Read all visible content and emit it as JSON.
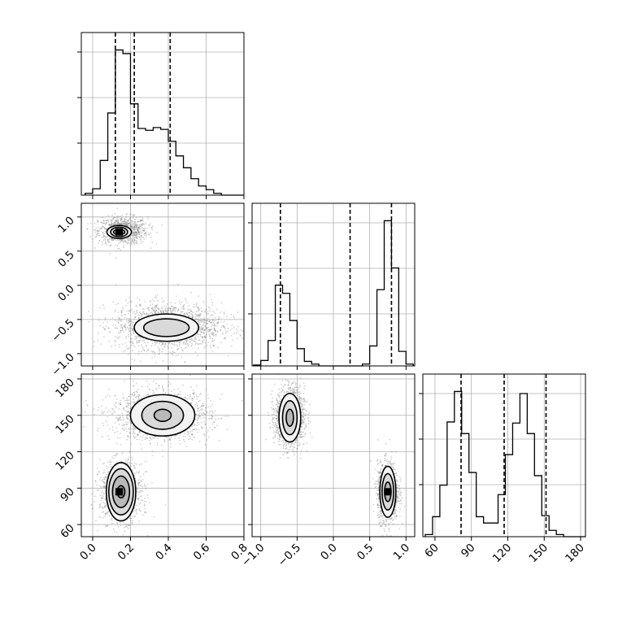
{
  "chart_data": {
    "type": "corner",
    "variables": [
      "param_0",
      "param_1",
      "param_2"
    ],
    "histograms": [
      {
        "variable": 0,
        "bins": [
          -0.04,
          0.0,
          0.04,
          0.08,
          0.12,
          0.16,
          0.2,
          0.24,
          0.28,
          0.32,
          0.36,
          0.4,
          0.44,
          0.48,
          0.52,
          0.56,
          0.6,
          0.64,
          0.68,
          0.72,
          0.76,
          0.8
        ],
        "counts": [
          0.2,
          0.7,
          3.8,
          9.0,
          15.9,
          15.5,
          10.0,
          7.3,
          7.1,
          7.4,
          7.2,
          5.9,
          4.3,
          3.0,
          1.8,
          1.0,
          0.6,
          0.2,
          0,
          0,
          0
        ],
        "quantiles": [
          0.12,
          0.22,
          0.41
        ],
        "xlim": [
          -0.06,
          0.8
        ]
      },
      {
        "variable": 1,
        "bins": [
          -1.1,
          -1.0,
          -0.9,
          -0.8,
          -0.7,
          -0.6,
          -0.5,
          -0.4,
          -0.3,
          -0.2,
          -0.1,
          0.0,
          0.1,
          0.2,
          0.3,
          0.4,
          0.5,
          0.6,
          0.7,
          0.8,
          0.9,
          1.0,
          1.1
        ],
        "counts": [
          0.1,
          0.6,
          2.8,
          8.9,
          8.0,
          5.0,
          1.9,
          0.5,
          0.2,
          0,
          0,
          0,
          0,
          0,
          0,
          0.2,
          2.2,
          8.4,
          16.0,
          10.8,
          1.6,
          0.2
        ],
        "quantiles": [
          -0.73,
          0.23,
          0.8
        ],
        "xlim": [
          -1.12,
          1.12
        ]
      },
      {
        "variable": 2,
        "bins": [
          52,
          58,
          64,
          70,
          76,
          82,
          88,
          94,
          100,
          106,
          112,
          118,
          124,
          130,
          136,
          142,
          148,
          154,
          160,
          166,
          172,
          178,
          184
        ],
        "counts": [
          0.2,
          1.9,
          4.9,
          10.9,
          13.8,
          9.8,
          6.1,
          1.9,
          1.3,
          1.3,
          4.0,
          7.8,
          10.8,
          13.6,
          9.8,
          5.8,
          2.0,
          0.6,
          0.2,
          0,
          0,
          0
        ],
        "quantiles": [
          81.5,
          117.0,
          151.5
        ],
        "xlim": [
          50,
          184
        ]
      }
    ],
    "scatter_panels": [
      {
        "x": 0,
        "y": 1,
        "xlim": [
          -0.06,
          0.8
        ],
        "ylim": [
          -1.18,
          1.2
        ],
        "clusters": [
          {
            "center": [
              0.16,
              0.8
            ],
            "spread": [
              0.065,
              0.1
            ],
            "n": 900
          },
          {
            "center": [
              0.4,
              -0.6
            ],
            "spread": [
              0.14,
              0.17
            ],
            "n": 1800
          }
        ],
        "contours": [
          {
            "center": [
              0.14,
              0.78
            ],
            "radii": [
              [
                0.03,
                0.035
              ],
              [
                0.045,
                0.07
              ],
              [
                0.065,
                0.095
              ]
            ]
          },
          {
            "center": [
              0.39,
              -0.62
            ],
            "radii": [
              [
                0.12,
                0.13
              ],
              [
                0.17,
                0.2
              ]
            ]
          }
        ],
        "peak": [
          0.14,
          0.78
        ]
      },
      {
        "x": 0,
        "y": 2,
        "xlim": [
          -0.06,
          0.8
        ],
        "ylim": [
          50,
          184
        ],
        "clusters": [
          {
            "center": [
              0.15,
              87
            ],
            "spread": [
              0.055,
              12
            ],
            "n": 1200
          },
          {
            "center": [
              0.36,
              150
            ],
            "spread": [
              0.13,
              10
            ],
            "n": 1600
          }
        ],
        "contours": [
          {
            "center": [
              0.15,
              87
            ],
            "radii": [
              [
                0.02,
                5
              ],
              [
                0.045,
                13
              ],
              [
                0.065,
                19
              ],
              [
                0.078,
                24
              ]
            ]
          },
          {
            "center": [
              0.37,
              150
            ],
            "radii": [
              [
                0.045,
                5
              ],
              [
                0.11,
                11.5
              ],
              [
                0.17,
                17
              ]
            ]
          }
        ],
        "peak": [
          0.14,
          87
        ]
      },
      {
        "x": 1,
        "y": 2,
        "xlim": [
          -1.12,
          1.12
        ],
        "ylim": [
          50,
          184
        ],
        "clusters": [
          {
            "center": [
              -0.6,
              148
            ],
            "spread": [
              0.1,
              12
            ],
            "n": 1400
          },
          {
            "center": [
              0.75,
              87
            ],
            "spread": [
              0.07,
              12
            ],
            "n": 1300
          }
        ],
        "contours": [
          {
            "center": [
              -0.6,
              148
            ],
            "radii": [
              [
                0.05,
                7
              ],
              [
                0.1,
                14
              ],
              [
                0.15,
                20
              ]
            ]
          },
          {
            "center": [
              0.75,
              87
            ],
            "radii": [
              [
                0.045,
                8
              ],
              [
                0.08,
                15
              ],
              [
                0.11,
                21
              ]
            ]
          }
        ],
        "peak": [
          0.75,
          87
        ]
      }
    ],
    "ticks": {
      "0": [
        "0.0",
        "0.2",
        "0.4",
        "0.6",
        "0.8"
      ],
      "1": [
        "−1.0",
        "−0.5",
        "0.0",
        "0.5",
        "1.0"
      ],
      "2": [
        "60",
        "90",
        "120",
        "150",
        "180"
      ]
    },
    "tick_values": {
      "0": [
        0.0,
        0.2,
        0.4,
        0.6,
        0.8
      ],
      "1": [
        -1.0,
        -0.5,
        0.0,
        0.5,
        1.0
      ],
      "2": [
        60,
        90,
        120,
        150,
        180
      ]
    },
    "title": "",
    "grid": true
  }
}
